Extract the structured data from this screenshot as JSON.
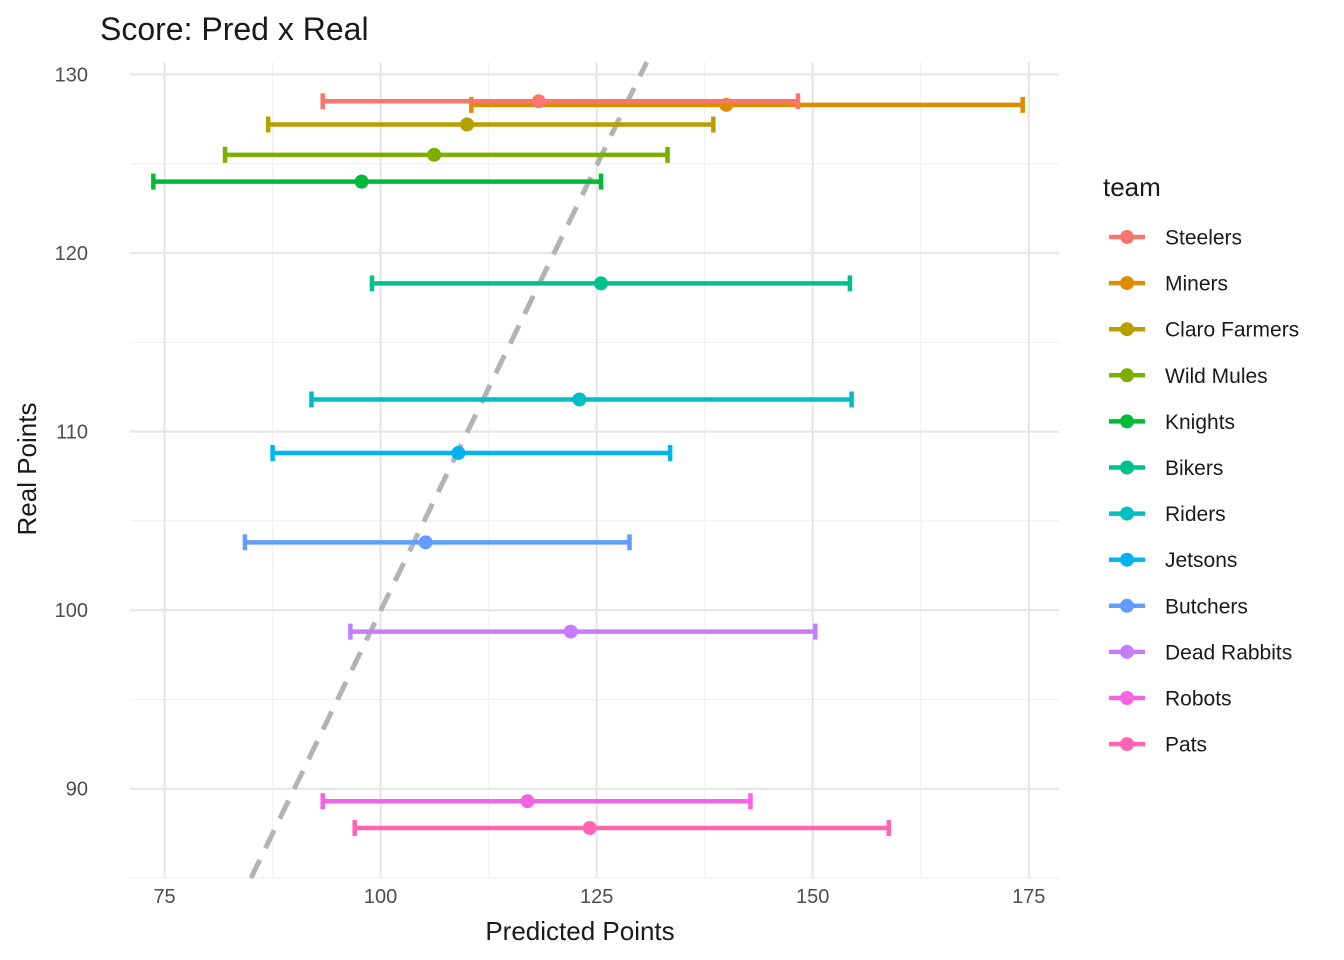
{
  "chart_data": {
    "type": "errorbar",
    "title": "Score: Pred x Real",
    "xlabel": "Predicted Points",
    "ylabel": "Real Points",
    "xlim": [
      71,
      178.5
    ],
    "ylim": [
      85,
      130.7
    ],
    "xticks": [
      75,
      100,
      125,
      150,
      175
    ],
    "yticks": [
      90,
      100,
      110,
      120,
      130
    ],
    "grid": true,
    "reference_line": {
      "style": "dashed",
      "color": "#b3b3b3",
      "x": [
        85,
        130.8
      ],
      "y": [
        85,
        130.7
      ]
    },
    "legend": {
      "title": "team",
      "position": "right"
    },
    "series": [
      {
        "name": "Steelers",
        "color": "#F8766D",
        "x": 118.3,
        "y": 128.5,
        "xmin": 93.3,
        "xmax": 148.3
      },
      {
        "name": "Miners",
        "color": "#DE8C00",
        "x": 140.0,
        "y": 128.3,
        "xmin": 110.5,
        "xmax": 174.3
      },
      {
        "name": "Claro Farmers",
        "color": "#B79F00",
        "x": 110.0,
        "y": 127.2,
        "xmin": 87.0,
        "xmax": 138.5
      },
      {
        "name": "Wild Mules",
        "color": "#7CAE00",
        "x": 106.2,
        "y": 125.5,
        "xmin": 82.0,
        "xmax": 133.2
      },
      {
        "name": "Knights",
        "color": "#00BA38",
        "x": 97.8,
        "y": 124.0,
        "xmin": 73.7,
        "xmax": 125.5
      },
      {
        "name": "Bikers",
        "color": "#00C08B",
        "x": 125.5,
        "y": 118.3,
        "xmin": 99.0,
        "xmax": 154.3
      },
      {
        "name": "Riders",
        "color": "#00BFC4",
        "x": 123.0,
        "y": 111.8,
        "xmin": 92.0,
        "xmax": 154.5
      },
      {
        "name": "Jetsons",
        "color": "#00B4F0",
        "x": 109.0,
        "y": 108.8,
        "xmin": 87.5,
        "xmax": 133.5
      },
      {
        "name": "Butchers",
        "color": "#619CFF",
        "x": 105.2,
        "y": 103.8,
        "xmin": 84.3,
        "xmax": 128.8
      },
      {
        "name": "Dead Rabbits",
        "color": "#C77CFF",
        "x": 122.0,
        "y": 98.8,
        "xmin": 96.5,
        "xmax": 150.3
      },
      {
        "name": "Robots",
        "color": "#F564E3",
        "x": 117.0,
        "y": 89.3,
        "xmin": 93.3,
        "xmax": 142.8
      },
      {
        "name": "Pats",
        "color": "#FF64B0",
        "x": 124.2,
        "y": 87.8,
        "xmin": 97.0,
        "xmax": 158.8
      }
    ]
  }
}
